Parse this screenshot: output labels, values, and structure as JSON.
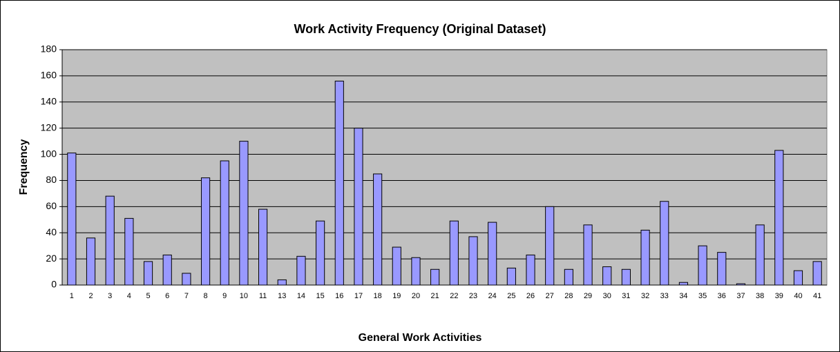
{
  "chart_data": {
    "type": "bar",
    "title": "Work Activity Frequency (Original Dataset)",
    "x_label": "General Work Activities",
    "y_label": "Frequency",
    "categories": [
      "1",
      "2",
      "3",
      "4",
      "5",
      "6",
      "7",
      "8",
      "9",
      "10",
      "11",
      "13",
      "14",
      "15",
      "16",
      "17",
      "18",
      "19",
      "20",
      "21",
      "22",
      "23",
      "24",
      "25",
      "26",
      "27",
      "28",
      "29",
      "30",
      "31",
      "32",
      "33",
      "34",
      "35",
      "36",
      "37",
      "38",
      "39",
      "40",
      "41"
    ],
    "values": [
      101,
      36,
      68,
      51,
      18,
      23,
      9,
      82,
      95,
      110,
      58,
      4,
      22,
      49,
      156,
      120,
      85,
      29,
      21,
      12,
      49,
      37,
      48,
      13,
      23,
      60,
      12,
      46,
      14,
      12,
      42,
      64,
      2,
      30,
      25,
      1,
      46,
      103,
      11,
      18
    ],
    "color": "#9999ff",
    "ylim": [
      0,
      180
    ],
    "yticks": [
      0,
      20,
      40,
      60,
      80,
      100,
      120,
      140,
      160,
      180
    ],
    "grid": true
  }
}
